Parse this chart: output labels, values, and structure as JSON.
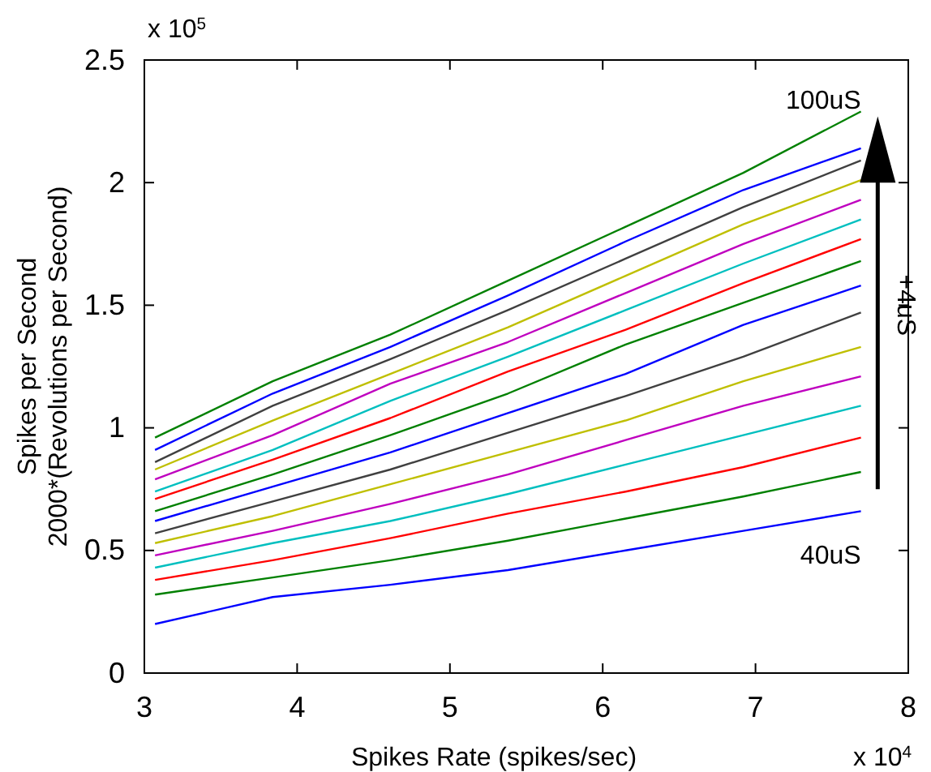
{
  "chart_data": {
    "type": "line",
    "xlabel": "Spikes Rate (spikes/sec)",
    "ylabel": "Spikes per Second\n2000*(Revolutions per Second)",
    "x": [
      3.07,
      3.84,
      4.61,
      5.38,
      6.15,
      6.92,
      7.69
    ],
    "xlim": [
      3,
      8
    ],
    "xticks": [
      3,
      4,
      5,
      6,
      7,
      8
    ],
    "ylim": [
      0,
      2.5
    ],
    "yticks": [
      0,
      0.5,
      1,
      1.5,
      2,
      2.5
    ],
    "grid": false,
    "line_style": "solid",
    "marker": "none",
    "series": [
      {
        "color": "#0000ff",
        "values": [
          0.2,
          0.31,
          0.36,
          0.42,
          0.5,
          0.58,
          0.66
        ]
      },
      {
        "color": "#008000",
        "values": [
          0.32,
          0.39,
          0.46,
          0.54,
          0.63,
          0.72,
          0.82
        ]
      },
      {
        "color": "#ff0000",
        "values": [
          0.38,
          0.46,
          0.55,
          0.65,
          0.74,
          0.84,
          0.96
        ]
      },
      {
        "color": "#00bfbf",
        "values": [
          0.43,
          0.53,
          0.62,
          0.73,
          0.85,
          0.97,
          1.09
        ]
      },
      {
        "color": "#bf00bf",
        "values": [
          0.48,
          0.58,
          0.69,
          0.81,
          0.95,
          1.09,
          1.21
        ]
      },
      {
        "color": "#bfbf00",
        "values": [
          0.53,
          0.64,
          0.77,
          0.9,
          1.03,
          1.19,
          1.33
        ]
      },
      {
        "color": "#404040",
        "values": [
          0.57,
          0.7,
          0.83,
          0.98,
          1.13,
          1.29,
          1.47
        ]
      },
      {
        "color": "#0000ff",
        "values": [
          0.62,
          0.76,
          0.9,
          1.06,
          1.22,
          1.42,
          1.58
        ]
      },
      {
        "color": "#008000",
        "values": [
          0.66,
          0.81,
          0.97,
          1.14,
          1.34,
          1.51,
          1.68
        ]
      },
      {
        "color": "#ff0000",
        "values": [
          0.71,
          0.87,
          1.04,
          1.23,
          1.4,
          1.59,
          1.77
        ]
      },
      {
        "color": "#00bfbf",
        "values": [
          0.74,
          0.91,
          1.11,
          1.29,
          1.48,
          1.67,
          1.85
        ]
      },
      {
        "color": "#bf00bf",
        "values": [
          0.79,
          0.97,
          1.18,
          1.35,
          1.55,
          1.75,
          1.93
        ]
      },
      {
        "color": "#bfbf00",
        "values": [
          0.83,
          1.03,
          1.22,
          1.41,
          1.62,
          1.83,
          2.01
        ]
      },
      {
        "color": "#404040",
        "values": [
          0.86,
          1.09,
          1.28,
          1.48,
          1.69,
          1.9,
          2.09
        ]
      },
      {
        "color": "#0000ff",
        "values": [
          0.91,
          1.14,
          1.33,
          1.54,
          1.76,
          1.97,
          2.14
        ]
      },
      {
        "color": "#008000",
        "values": [
          0.96,
          1.19,
          1.38,
          1.6,
          1.82,
          2.04,
          2.29
        ]
      }
    ],
    "annotations": [
      "100uS",
      "40uS",
      "+4uS",
      "x 10$^{5}$",
      "x 10$^{4}$"
    ]
  }
}
